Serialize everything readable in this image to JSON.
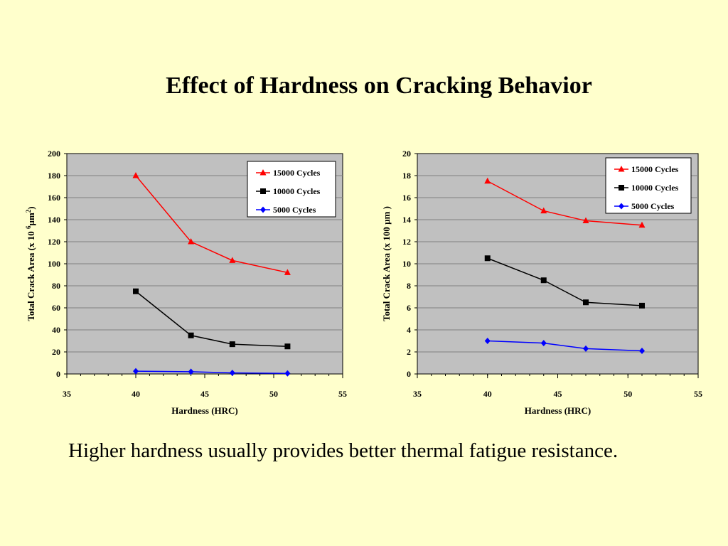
{
  "slide": {
    "title": "Effect of Hardness on Cracking Behavior",
    "caption": "Higher hardness usually provides better thermal fatigue resistance."
  },
  "colors": {
    "background": "#ffffcc",
    "plot_area": "#c0c0c0",
    "series_15000": "#ff0000",
    "series_10000": "#000000",
    "series_5000": "#0000ff"
  },
  "chart_data": [
    {
      "type": "line",
      "title": "",
      "xlabel": "Hardness (HRC)",
      "ylabel": "Total Crack Area (x 10 6 µm2)",
      "ylabel_parts": {
        "main": "Total Crack Area (x 10 ",
        "sup1": "6",
        "mid": "µm",
        "sup2": "2",
        "end": ")"
      },
      "xlim": [
        35,
        55
      ],
      "ylim": [
        0,
        200
      ],
      "xticks": [
        35,
        40,
        45,
        50,
        55
      ],
      "yticks": [
        0,
        20,
        40,
        60,
        80,
        100,
        120,
        140,
        160,
        180,
        200
      ],
      "grid": true,
      "legend_position": "top-right",
      "series": [
        {
          "name": "15000 Cycles",
          "color": "#ff0000",
          "marker": "triangle",
          "x": [
            40,
            44,
            47,
            51
          ],
          "y": [
            180,
            120,
            103,
            92
          ]
        },
        {
          "name": "10000 Cycles",
          "color": "#000000",
          "marker": "square",
          "x": [
            40,
            44,
            47,
            51
          ],
          "y": [
            75,
            35,
            27,
            25
          ]
        },
        {
          "name": "5000 Cycles",
          "color": "#0000ff",
          "marker": "diamond",
          "x": [
            40,
            44,
            47,
            51
          ],
          "y": [
            2.5,
            2,
            1,
            0.5
          ]
        }
      ]
    },
    {
      "type": "line",
      "title": "",
      "xlabel": "Hardness (HRC)",
      "ylabel": "Total Crack Area (x 100 µm )",
      "xlim": [
        35,
        55
      ],
      "ylim": [
        0,
        20
      ],
      "xticks": [
        35,
        40,
        45,
        50,
        55
      ],
      "yticks": [
        0,
        2,
        4,
        6,
        8,
        10,
        12,
        14,
        16,
        18,
        20
      ],
      "grid": true,
      "legend_position": "top-right",
      "series": [
        {
          "name": "15000 Cycles",
          "color": "#ff0000",
          "marker": "triangle",
          "x": [
            40,
            44,
            47,
            51
          ],
          "y": [
            17.5,
            14.8,
            13.9,
            13.5
          ]
        },
        {
          "name": "10000 Cycles",
          "color": "#000000",
          "marker": "square",
          "x": [
            40,
            44,
            47,
            51
          ],
          "y": [
            10.5,
            8.5,
            6.5,
            6.2
          ]
        },
        {
          "name": "5000 Cycles",
          "color": "#0000ff",
          "marker": "diamond",
          "x": [
            40,
            44,
            47,
            51
          ],
          "y": [
            3,
            2.8,
            2.3,
            2.1
          ]
        }
      ]
    }
  ]
}
